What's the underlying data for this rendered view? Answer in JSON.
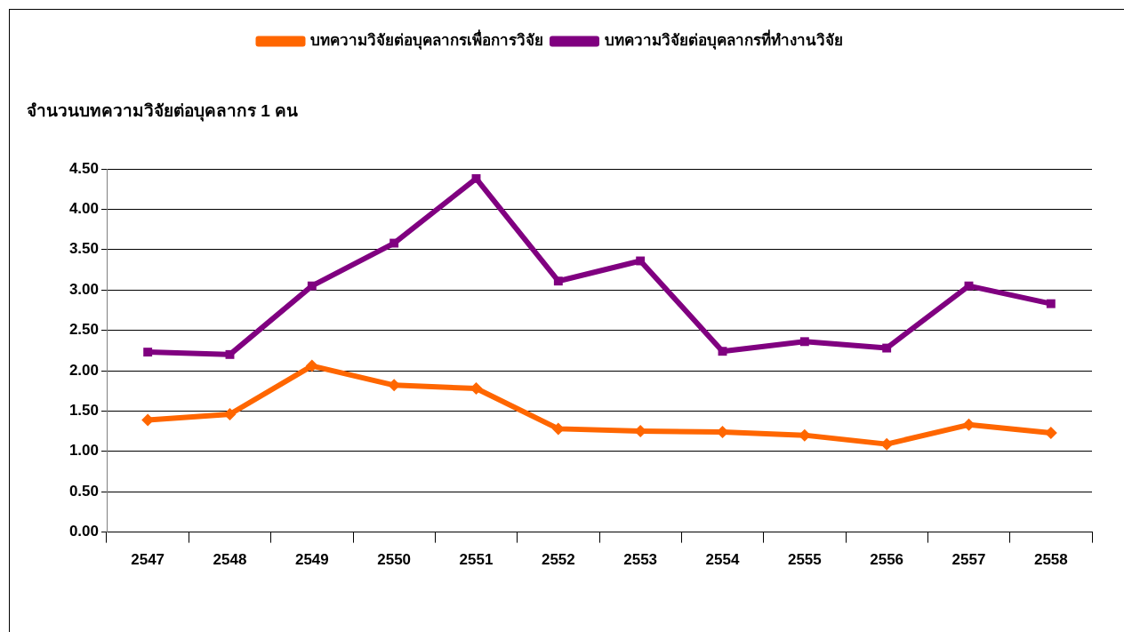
{
  "chart_data": {
    "type": "line",
    "ylabel": "จำนวนบทความวิจัยต่อบุคลากร 1 คน",
    "categories": [
      "2547",
      "2548",
      "2549",
      "2550",
      "2551",
      "2552",
      "2553",
      "2554",
      "2555",
      "2556",
      "2557",
      "2558"
    ],
    "series": [
      {
        "name": "บทความวิจัยต่อบุคลากรเพื่อการวิจัย",
        "color": "#ff6600",
        "marker": "diamond",
        "values": [
          1.39,
          1.46,
          2.06,
          1.82,
          1.78,
          1.28,
          1.25,
          1.24,
          1.2,
          1.09,
          1.33,
          1.23
        ]
      },
      {
        "name": "บทความวิจัยต่อบุคลากรที่ทำงานวิจัย",
        "color": "#800080",
        "marker": "square",
        "values": [
          2.23,
          2.2,
          3.05,
          3.58,
          4.38,
          3.11,
          3.36,
          2.24,
          2.36,
          2.28,
          3.05,
          2.83
        ]
      }
    ],
    "ylim": [
      0,
      4.5
    ],
    "yticks": [
      {
        "value": 0,
        "label": "0.00"
      },
      {
        "value": 0.5,
        "label": "0.50"
      },
      {
        "value": 1,
        "label": "1.00"
      },
      {
        "value": 1.5,
        "label": "1.50"
      },
      {
        "value": 2,
        "label": "2.00"
      },
      {
        "value": 2.5,
        "label": "2.50"
      },
      {
        "value": 3,
        "label": "3.00"
      },
      {
        "value": 3.5,
        "label": "3.50"
      },
      {
        "value": 4,
        "label": "4.00"
      },
      {
        "value": 4.5,
        "label": "4.50"
      }
    ],
    "grid": "y",
    "legend": "top",
    "line_style": "solid"
  }
}
